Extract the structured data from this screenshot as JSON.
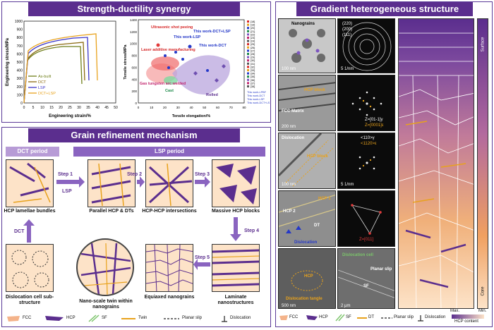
{
  "panels": {
    "top_left_title": "Strength-ductility synergy",
    "bottom_left_title": "Grain refinement mechanism",
    "right_title": "Gradient heterogeneous structure"
  },
  "stress_strain": {
    "ylabel": "Engineering stress/MPa",
    "xlabel": "Engineering strain/%",
    "yticks": [
      "0",
      "100",
      "200",
      "300",
      "400",
      "500",
      "600",
      "700",
      "800",
      "900",
      "1000"
    ],
    "xticks": [
      "0",
      "5",
      "10",
      "15",
      "20",
      "25",
      "30",
      "35",
      "40",
      "45",
      "50"
    ],
    "legend": [
      {
        "name": "As-built",
        "color": "#6f7f1a"
      },
      {
        "name": "DCT",
        "color": "#8b6a12"
      },
      {
        "name": "LSP",
        "color": "#3a34c8"
      },
      {
        "name": "DCT+LSP",
        "color": "#e8a21c"
      }
    ]
  },
  "ashby": {
    "ylabel": "Tensile stress/MPa",
    "xlabel": "Tensile elongation/%",
    "yticks": [
      "0",
      "200",
      "400",
      "600",
      "800",
      "1000",
      "1200",
      "1400"
    ],
    "xticks": [
      "0",
      "10",
      "20",
      "30",
      "40",
      "50",
      "60",
      "70",
      "80"
    ],
    "annotations": {
      "ultrasonic": "Ultrasonic shot peeing",
      "laser": "Laser additive manufacturing",
      "gas": "Gas tungsten arc welded",
      "cast": "Cast",
      "rolled": "Rolled",
      "lsp": "This work-LSP",
      "dct_lsp": "This work-DCT+LSP",
      "dct": "This work-DCT"
    },
    "legend_refs": [
      "[18]",
      "[19]",
      "[20]",
      "[21]",
      "[22]",
      "[23]",
      "[24]",
      "[25]",
      "[26]",
      "[27]",
      "[28]",
      "[29]",
      "[30]",
      "[31]",
      "[32]",
      "[33]",
      "[34]",
      "[35]",
      "[36]",
      "[37]",
      "[38]"
    ],
    "legend_work": [
      "This work-LPBF",
      "This work-DCT",
      "This work-LSP",
      "This work-DCT+LSP"
    ]
  },
  "grain": {
    "dct_period": "DCT period",
    "lsp_period": "LSP period",
    "step1": "Step 1",
    "step2": "Step 2",
    "step3": "Step 3",
    "step4": "Step 4",
    "step5": "Step 5",
    "lsp": "LSP",
    "dct": "DCT",
    "caps": {
      "hcp_lamellae": "HCP lamellae bundles",
      "parallel": "Parallel HCP & DTs",
      "intersections": "HCP-HCP intersections",
      "massive": "Massive HCP blocks",
      "dislocation_cell": "Dislocation cell sub-structure",
      "nano_twin": "Nano-scale twin within nanograins",
      "equiaxed": "Equiaxed nanograins",
      "laminate": "Laminate nanostructures"
    }
  },
  "tem": {
    "labels": {
      "nanograins": "Nanograins",
      "hcp_block_1": "HCP block",
      "fcc_matrix": "FCC Matrix",
      "dislocation": "Dislocation",
      "hcp_block_2": "HCP block",
      "hcp1": "HCP 1",
      "hcp2": "HCP 2",
      "dt": "DT",
      "dislocation_b": "Dislocation",
      "hcp": "HCP",
      "dislocation_tangle": "Dislocation tangle",
      "dislocation_cell": "Dislocation cell",
      "planar_slip": "Planar slip",
      "sf": "SF"
    },
    "diff_labels": {
      "d2_zone": "Z=[01-1]γ",
      "d2_zone2": "Z=[0001]ε",
      "d3_axis": "<110>γ",
      "d3_axis2": "<1120>ε",
      "d4_zone": "Z=[011]",
      "ring1": "(220)",
      "ring2": "(200)",
      "ring3": "(111)"
    },
    "scales": [
      "100 nm",
      "5 1/nm",
      "200 nm",
      "5 1/nm",
      "100 nm",
      "5 1/nm",
      "500 nm",
      "5 1/nm",
      "500 nm",
      "2 μm"
    ]
  },
  "gradient": {
    "surface": "Surface",
    "core": "Core",
    "max": "Max.",
    "min": "Min.",
    "content": "HCP content"
  },
  "legend_bottom": {
    "fcc": "FCC",
    "hcp": "HCP",
    "sf": "SF",
    "dt": "DT",
    "planar_slip": "Planar slip",
    "dislocation": "Dislocation",
    "twin": "Twin"
  },
  "colors": {
    "purple": "#5b2e8e",
    "orange": "#e8a21c",
    "peach": "#fde3c8"
  }
}
